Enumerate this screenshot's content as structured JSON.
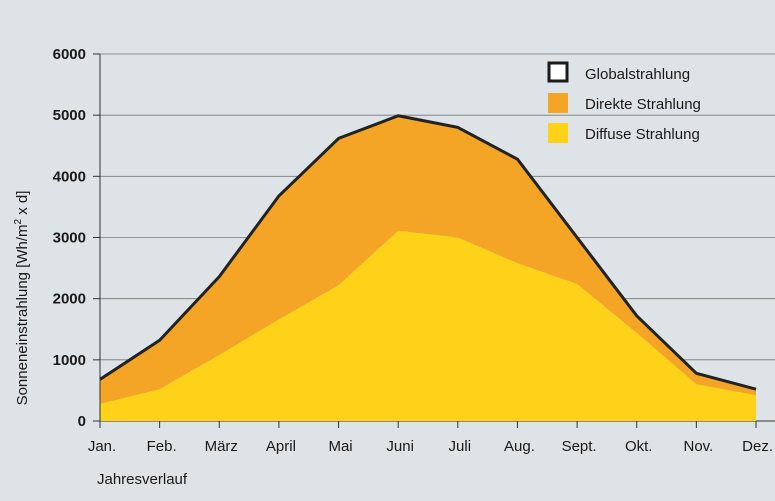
{
  "chart_data": {
    "type": "area",
    "categories": [
      "Jan.",
      "Feb.",
      "März",
      "April",
      "Mai",
      "Juni",
      "Juli",
      "Aug.",
      "Sept.",
      "Okt.",
      "Nov.",
      "Dez."
    ],
    "series": [
      {
        "name": "Globalstrahlung",
        "values": [
          680,
          1320,
          2360,
          3680,
          4620,
          4990,
          4800,
          4280,
          3000,
          1720,
          780,
          520
        ]
      },
      {
        "name": "Direkte Strahlung",
        "values": [
          400,
          800,
          1280,
          2020,
          2400,
          1880,
          1800,
          1700,
          760,
          280,
          180,
          100
        ]
      },
      {
        "name": "Diffuse Strahlung",
        "values": [
          280,
          520,
          1080,
          1660,
          2220,
          3110,
          3000,
          2580,
          2240,
          1440,
          600,
          420
        ]
      }
    ],
    "colors": {
      "global": "#222222",
      "direct": "#f5a525",
      "diffuse": "#ffd21a"
    },
    "yticks": [
      0,
      1000,
      2000,
      3000,
      4000,
      5000,
      6000
    ],
    "ylim": [
      0,
      6000
    ],
    "ylabel_main": "Sonneneinstrahlung [Wh/m",
    "ylabel_sup": "2",
    "ylabel_tail": " x d]",
    "xlabel": "Jahresverlauf",
    "legend_position": "top-right",
    "grid": true
  }
}
